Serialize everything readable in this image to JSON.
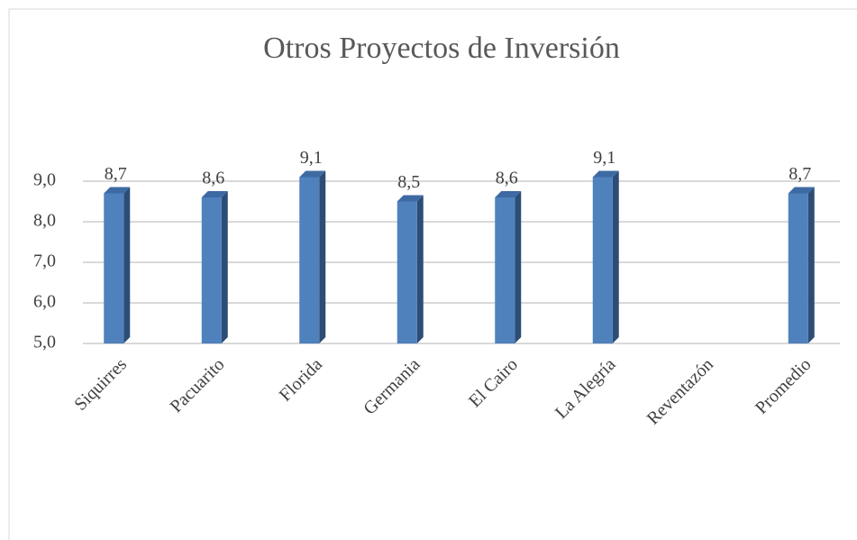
{
  "chart_data": {
    "type": "bar",
    "title": "Otros Proyectos de Inversión",
    "categories": [
      "Siquirres",
      "Pacuarito",
      "Florida",
      "Germania",
      "El Cairo",
      "La Alegría",
      "Reventazón",
      "Promedio"
    ],
    "values": [
      8.7,
      8.6,
      9.1,
      8.5,
      8.6,
      9.1,
      null,
      8.7
    ],
    "value_labels": [
      "8,7",
      "8,6",
      "9,1",
      "8,5",
      "8,6",
      "9,1",
      null,
      "8,7"
    ],
    "color": "#4f81bd",
    "ylim": [
      5,
      9
    ],
    "yticks": [
      {
        "value": 5,
        "label": "5,0"
      },
      {
        "value": 6,
        "label": "6,0"
      },
      {
        "value": 7,
        "label": "7,0"
      },
      {
        "value": 8,
        "label": "8,0"
      },
      {
        "value": 9,
        "label": "9,0"
      }
    ],
    "grid": true
  }
}
